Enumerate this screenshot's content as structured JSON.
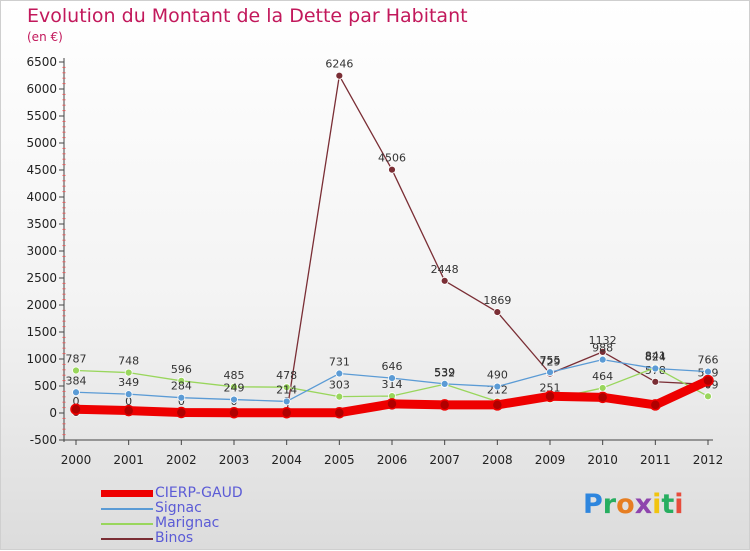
{
  "title": "Evolution du Montant de la Dette par Habitant",
  "subtitle": "(en €)",
  "brand": "Proxiti",
  "brand_letters": [
    {
      "ch": "P",
      "color": "#2e86de"
    },
    {
      "ch": "r",
      "color": "#27ae60"
    },
    {
      "ch": "o",
      "color": "#e67e22"
    },
    {
      "ch": "x",
      "color": "#8e44ad"
    },
    {
      "ch": "i",
      "color": "#f1c40f"
    },
    {
      "ch": "t",
      "color": "#27ae60"
    },
    {
      "ch": "i",
      "color": "#e74c3c"
    }
  ],
  "chart_data": {
    "type": "line",
    "x": [
      "2000",
      "2001",
      "2002",
      "2003",
      "2004",
      "2005",
      "2006",
      "2007",
      "2008",
      "2009",
      "2010",
      "2011",
      "2012"
    ],
    "ylim": [
      -500,
      6500
    ],
    "yticks": [
      -500,
      0,
      500,
      1000,
      1500,
      2000,
      2500,
      3000,
      3500,
      4000,
      4500,
      5000,
      5500,
      6000,
      6500
    ],
    "grid": false,
    "legend_position": "bottom-left",
    "series": [
      {
        "name": "CIERP-GAUD",
        "color": "#ee0000",
        "values": [
          70,
          45,
          10,
          5,
          5,
          5,
          170,
          150,
          150,
          310,
          290,
          150,
          600
        ],
        "labels": false
      },
      {
        "name": "Signac",
        "color": "#5b9bd5",
        "values": [
          384,
          349,
          284,
          249,
          214,
          731,
          646,
          539,
          490,
          755,
          988,
          824,
          766
        ],
        "labels": true
      },
      {
        "name": "Marignac",
        "color": "#99d65c",
        "values": [
          787,
          748,
          596,
          485,
          478,
          303,
          314,
          532,
          212,
          251,
          464,
          841,
          309
        ],
        "labels": true
      },
      {
        "name": "Binos",
        "color": "#7a2e35",
        "values": [
          0,
          0,
          0,
          0,
          0,
          6246,
          4506,
          2448,
          1869,
          729,
          1132,
          578,
          529
        ],
        "labels": true
      }
    ]
  }
}
